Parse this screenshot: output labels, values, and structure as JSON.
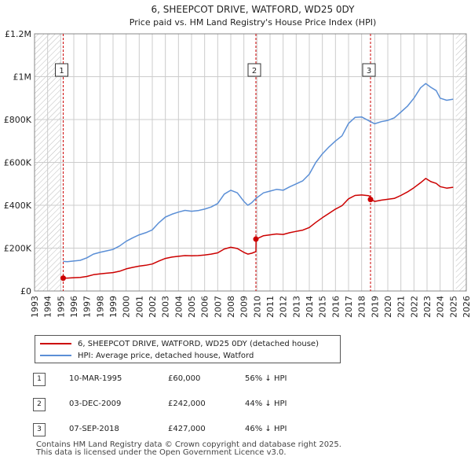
{
  "chart_data": {
    "type": "line",
    "title": "6, SHEEPCOT DRIVE, WATFORD, WD25 0DY",
    "subtitle": "Price paid vs. HM Land Registry's House Price Index (HPI)",
    "x_range": [
      1993,
      2026
    ],
    "ylim": [
      0,
      1200000
    ],
    "y_ticks": [
      {
        "value": 0,
        "label": "£0"
      },
      {
        "value": 200000,
        "label": "£200K"
      },
      {
        "value": 400000,
        "label": "£400K"
      },
      {
        "value": 600000,
        "label": "£600K"
      },
      {
        "value": 800000,
        "label": "£800K"
      },
      {
        "value": 1000000,
        "label": "£1M"
      },
      {
        "value": 1200000,
        "label": "£1.2M"
      }
    ],
    "x_ticks": [
      "1993",
      "1994",
      "1995",
      "1996",
      "1997",
      "1998",
      "1999",
      "2000",
      "2001",
      "2002",
      "2003",
      "2004",
      "2005",
      "2006",
      "2007",
      "2008",
      "2009",
      "2010",
      "2011",
      "2012",
      "2013",
      "2014",
      "2015",
      "2016",
      "2017",
      "2018",
      "2019",
      "2020",
      "2021",
      "2022",
      "2023",
      "2024",
      "2025",
      "2026"
    ],
    "hatch_before": 1995.0,
    "hatch_after": 2025.2,
    "grid": true,
    "series": [
      {
        "name": "6, SHEEPCOT DRIVE, WATFORD, WD25 0DY (detached house)",
        "color": "#cc0000",
        "x": [
          1995.19,
          1995.5,
          1996.0,
          1996.5,
          1997.0,
          1997.5,
          1998.0,
          1998.5,
          1999.0,
          1999.5,
          2000.0,
          2000.5,
          2001.0,
          2001.5,
          2002.0,
          2002.5,
          2003.0,
          2003.5,
          2004.0,
          2004.5,
          2005.0,
          2005.5,
          2006.0,
          2006.5,
          2007.0,
          2007.5,
          2008.0,
          2008.5,
          2009.0,
          2009.3,
          2009.6,
          2009.92,
          2009.93,
          2010.5,
          2011.0,
          2011.5,
          2012.0,
          2012.5,
          2013.0,
          2013.5,
          2014.0,
          2014.5,
          2015.0,
          2015.5,
          2016.0,
          2016.5,
          2017.0,
          2017.5,
          2018.0,
          2018.5,
          2018.68,
          2018.69,
          2019.0,
          2019.5,
          2020.0,
          2020.5,
          2021.0,
          2021.5,
          2022.0,
          2022.5,
          2022.9,
          2023.3,
          2023.7,
          2024.0,
          2024.5,
          2025.0
        ],
        "values": [
          60000,
          60000,
          62000,
          63000,
          68000,
          76000,
          80000,
          83000,
          86000,
          92000,
          103000,
          110000,
          116000,
          120000,
          126000,
          140000,
          152000,
          158000,
          162000,
          165000,
          164000,
          165000,
          168000,
          172000,
          178000,
          196000,
          204000,
          198000,
          180000,
          172000,
          176000,
          184000,
          242000,
          258000,
          262000,
          266000,
          264000,
          272000,
          278000,
          284000,
          296000,
          320000,
          342000,
          362000,
          382000,
          398000,
          430000,
          446000,
          448000,
          445000,
          440000,
          427000,
          418000,
          424000,
          428000,
          432000,
          446000,
          462000,
          482000,
          505000,
          525000,
          510000,
          502000,
          487000,
          480000,
          484000
        ]
      },
      {
        "name": "HPI: Average price, detached house, Watford",
        "color": "#5b8fd6",
        "x": [
          1995.19,
          1995.5,
          1996.0,
          1996.5,
          1997.0,
          1997.5,
          1998.0,
          1998.5,
          1999.0,
          1999.5,
          2000.0,
          2000.5,
          2001.0,
          2001.5,
          2002.0,
          2002.5,
          2003.0,
          2003.5,
          2004.0,
          2004.5,
          2005.0,
          2005.5,
          2006.0,
          2006.5,
          2007.0,
          2007.5,
          2008.0,
          2008.5,
          2009.0,
          2009.3,
          2009.6,
          2009.92,
          2010.5,
          2011.0,
          2011.5,
          2012.0,
          2012.5,
          2013.0,
          2013.5,
          2014.0,
          2014.5,
          2015.0,
          2015.5,
          2016.0,
          2016.5,
          2017.0,
          2017.5,
          2018.0,
          2018.68,
          2019.0,
          2019.5,
          2020.0,
          2020.5,
          2021.0,
          2021.5,
          2022.0,
          2022.5,
          2022.9,
          2023.3,
          2023.7,
          2024.0,
          2024.5,
          2025.0
        ],
        "values": [
          138000,
          137000,
          140000,
          143000,
          155000,
          172000,
          180000,
          187000,
          194000,
          210000,
          232000,
          248000,
          262000,
          272000,
          285000,
          318000,
          345000,
          358000,
          368000,
          376000,
          372000,
          375000,
          382000,
          392000,
          408000,
          452000,
          470000,
          458000,
          418000,
          400000,
          412000,
          432000,
          458000,
          466000,
          474000,
          470000,
          486000,
          500000,
          514000,
          545000,
          600000,
          640000,
          672000,
          700000,
          724000,
          782000,
          810000,
          812000,
          790000,
          780000,
          790000,
          796000,
          808000,
          835000,
          862000,
          900000,
          948000,
          968000,
          950000,
          935000,
          900000,
          890000,
          895000
        ]
      }
    ],
    "sales": [
      {
        "num": "1",
        "x": 1995.19,
        "value": 60000,
        "date": "10-MAR-1995",
        "price": "£60,000",
        "diff": "56% ↓ HPI"
      },
      {
        "num": "2",
        "x": 2009.92,
        "value": 242000,
        "date": "03-DEC-2009",
        "price": "£242,000",
        "diff": "44% ↓ HPI"
      },
      {
        "num": "3",
        "x": 2018.68,
        "value": 427000,
        "date": "07-SEP-2018",
        "price": "£427,000",
        "diff": "46% ↓ HPI"
      }
    ]
  },
  "legend": {
    "property_label": "6, SHEEPCOT DRIVE, WATFORD, WD25 0DY (detached house)",
    "hpi_label": "HPI: Average price, detached house, Watford"
  },
  "footer": {
    "line1": "Contains HM Land Registry data © Crown copyright and database right 2025.",
    "line2": "This data is licensed under the Open Government Licence v3.0."
  },
  "colors": {
    "property": "#cc0000",
    "hpi": "#5b8fd6",
    "grid": "#cccccc",
    "plot_bg": "#ffffff"
  }
}
